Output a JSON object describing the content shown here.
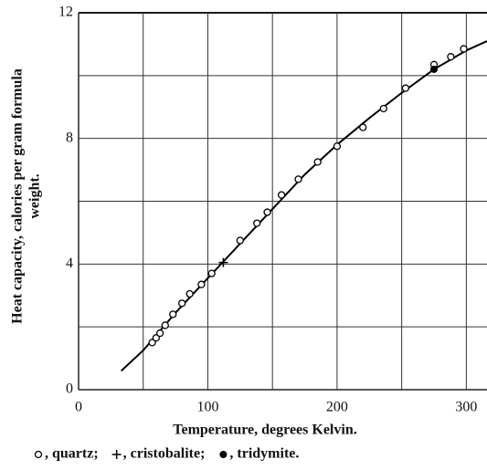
{
  "chart_data": {
    "type": "scatter",
    "xlabel": "Temperature, degrees Kelvin.",
    "ylabel": [
      "Heat capacity, calories per gram formula",
      "weight."
    ],
    "xlim": [
      0,
      316
    ],
    "ylim": [
      0,
      12
    ],
    "xticks": [
      0,
      100,
      200,
      300
    ],
    "yticks": [
      0,
      4,
      8,
      12
    ],
    "x_minor_grid": [
      50,
      150,
      250
    ],
    "y_minor_grid": [
      2,
      6,
      10
    ],
    "grid": true,
    "series": [
      {
        "name": ", quartz;",
        "marker": "circle",
        "color": "#000000",
        "x": [
          57,
          60,
          63,
          67,
          73,
          80,
          86,
          95,
          103,
          125,
          138,
          146,
          157,
          170,
          185,
          200,
          220,
          236,
          253,
          275,
          288,
          298
        ],
        "values": [
          1.5,
          1.65,
          1.8,
          2.05,
          2.4,
          2.75,
          3.05,
          3.35,
          3.7,
          4.75,
          5.3,
          5.65,
          6.2,
          6.7,
          7.25,
          7.75,
          8.35,
          8.95,
          9.6,
          10.35,
          10.6,
          10.85
        ]
      },
      {
        "name": ", cristobalite;",
        "marker": "plus",
        "color": "#000000",
        "x": [
          112
        ],
        "values": [
          4.05
        ]
      },
      {
        "name": ", tridymite.",
        "marker": "dot",
        "color": "#000000",
        "x": [
          275
        ],
        "values": [
          10.2
        ]
      }
    ],
    "curve": {
      "color": "#000000",
      "x": [
        33,
        50,
        75,
        100,
        125,
        150,
        175,
        200,
        225,
        250,
        275,
        300,
        316
      ],
      "values": [
        0.6,
        1.25,
        2.45,
        3.55,
        4.65,
        5.75,
        6.85,
        7.8,
        8.65,
        9.45,
        10.2,
        10.8,
        11.1
      ]
    }
  }
}
